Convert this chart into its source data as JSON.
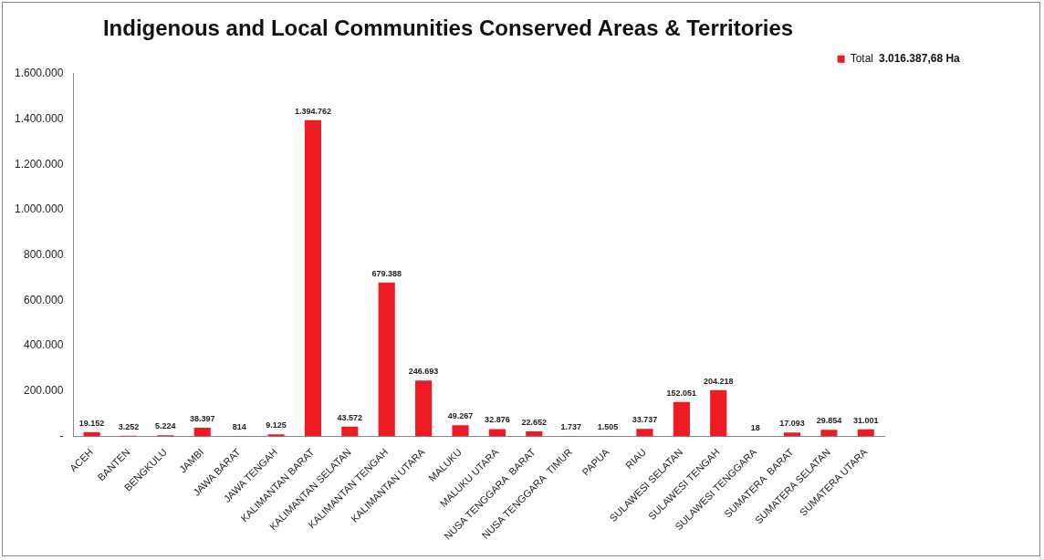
{
  "chart_data": {
    "type": "bar",
    "title": "Indigenous and Local Communities Conserved Areas & Territories",
    "categories": [
      "ACEH",
      "BANTEN",
      "BENGKULU",
      "JAMBI",
      "JAWA BARAT",
      "JAWA TENGAH",
      "KALIMANTAN BARAT",
      "KALIMANTAN SELATAN",
      "KALIMANTAN TENGAH",
      "KALIMANTAN UTARA",
      "MALUKU",
      "MALUKU UTARA",
      "NUSA TENGGARA  BARAT",
      "NUSA TENGGARA  TIMUR",
      "PAPUA",
      "RIAU",
      "SULAWESI SELATAN",
      "SULAWESI TENGAH",
      "SULAWESI TENGGARA",
      "SUMATERA  BARAT",
      "SUMATERA SELATAN",
      "SUMATERA UTARA"
    ],
    "series": [
      {
        "name": "Total",
        "color": "#ed1c24",
        "values": [
          19152,
          3252,
          5224,
          38397,
          814,
          9125,
          1394762,
          43572,
          679388,
          246693,
          49267,
          32876,
          22652,
          1737,
          1505,
          33737,
          152051,
          204218,
          18,
          17093,
          29854,
          31001
        ],
        "value_labels": [
          "19.152",
          "3.252",
          "5.224",
          "38.397",
          "814",
          "9.125",
          "1.394.762",
          "43.572",
          "679.388",
          "246.693",
          "49.267",
          "32.876",
          "22.652",
          "1.737",
          "1.505",
          "33.737",
          "152.051",
          "204.218",
          "18",
          "17.093",
          "29.854",
          "31.001"
        ]
      }
    ],
    "ylim": [
      0,
      1600000
    ],
    "yticks": [
      {
        "value": 0,
        "label": "-"
      },
      {
        "value": 200000,
        "label": "200.000"
      },
      {
        "value": 400000,
        "label": "400.000"
      },
      {
        "value": 600000,
        "label": "600.000"
      },
      {
        "value": 800000,
        "label": "800.000"
      },
      {
        "value": 1000000,
        "label": "1.000.000"
      },
      {
        "value": 1200000,
        "label": "1.200.000"
      },
      {
        "value": 1400000,
        "label": "1.400.000"
      },
      {
        "value": 1600000,
        "label": "1.600.000"
      }
    ],
    "grid": false,
    "legend": "top right",
    "annotations": [
      "3.016.387,68 Ha"
    ]
  }
}
